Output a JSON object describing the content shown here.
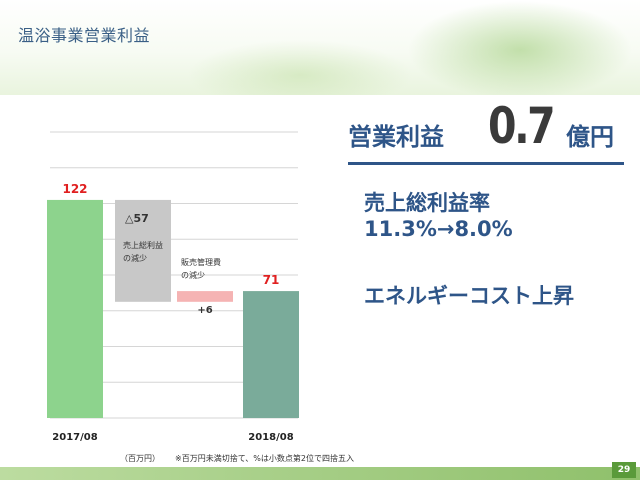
{
  "slide": {
    "title": "温浴事業営業利益",
    "page_number": "29",
    "unit_note": "（百万円）",
    "footnote": "※百万円未満切捨て、%は小数点第2位で四捨五入"
  },
  "summary": {
    "operating_profit_label": "営業利益",
    "operating_profit_value": "0.7",
    "operating_profit_unit": "億円",
    "gross_margin_label": "売上総利益率",
    "gross_margin_change": "11.3%→8.0%",
    "energy_note": "エネルギーコスト上昇"
  },
  "chart_data": {
    "type": "bar",
    "subtype": "waterfall",
    "categories": [
      "2017/08",
      "",
      "",
      "2018/08"
    ],
    "steps": [
      {
        "category": "2017/08",
        "kind": "total",
        "value": 122,
        "label": "122",
        "color": "#8dd38d"
      },
      {
        "category": "",
        "kind": "decrease",
        "value": -57,
        "label": "△57",
        "annotation": [
          "売上総利益",
          "の減少"
        ],
        "color": "#c8c8c8"
      },
      {
        "category": "",
        "kind": "increase",
        "value": 6,
        "label": "+6",
        "annotation": [
          "販売管理費",
          "の減少"
        ],
        "color": "#f5b3b3"
      },
      {
        "category": "2018/08",
        "kind": "total",
        "value": 71,
        "label": "71",
        "color": "#7aab9a"
      }
    ],
    "ylim": [
      0,
      160
    ],
    "grid": true,
    "xlabel": "",
    "ylabel": "",
    "total_label_color": "#e02020"
  }
}
